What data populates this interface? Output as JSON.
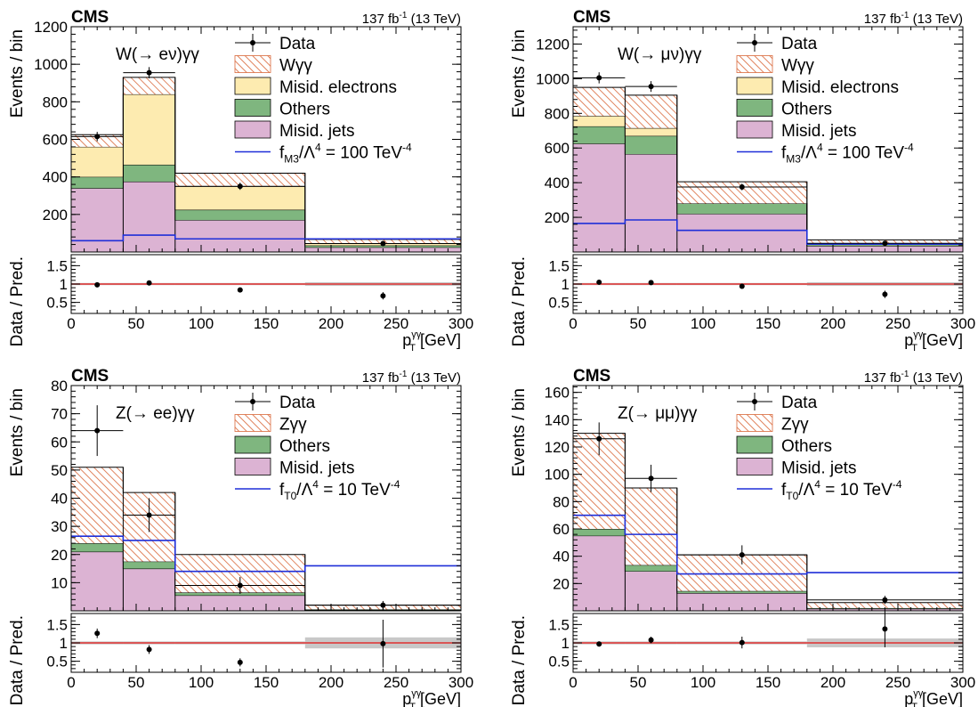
{
  "colors": {
    "signal_fill": "#ffffff",
    "signal_hatch": "#d9683a",
    "misid_electrons": "#fdebb0",
    "others": "#7fb67f",
    "misid_jets": "#dcb3d3",
    "eft_line": "#1f2fd8",
    "ratio_line": "#e03030",
    "ratio_band": "#c8c8c8"
  },
  "chart_data": [
    {
      "type": "bar",
      "experiment": "CMS",
      "lumi": "137 fb",
      "lumi_sup": "-1",
      "energy": " (13 TeV)",
      "process_label": "W(→ eν)γγ",
      "ylabel": "Events / bin",
      "ratio_ylabel": "Data / Pred.",
      "xlabel_main": "p",
      "xlabel_sup": "γγ",
      "xlabel_sub": "T",
      "xlabel_unit": " [GeV]",
      "bin_edges": [
        0,
        40,
        80,
        180,
        300
      ],
      "xlim": [
        0,
        300
      ],
      "ylim": [
        0,
        1200
      ],
      "yticks": [
        200,
        400,
        600,
        800,
        1000,
        1200
      ],
      "xticks": [
        0,
        50,
        100,
        150,
        200,
        250,
        300
      ],
      "ratio_ylim": [
        0.2,
        1.8
      ],
      "ratio_yticks": [
        0.5,
        1,
        1.5
      ],
      "legend": [
        {
          "kind": "data",
          "label": "Data"
        },
        {
          "kind": "signal",
          "label": "Wγγ"
        },
        {
          "kind": "misid_electrons",
          "label": "Misid. electrons"
        },
        {
          "kind": "others",
          "label": "Others"
        },
        {
          "kind": "misid_jets",
          "label": "Misid. jets"
        },
        {
          "kind": "eft",
          "label": "f",
          "sub": "M3",
          "rest": "/Λ",
          "sup1": "4",
          "rest2": " = 100 TeV",
          "sup2": "-4"
        }
      ],
      "stack": [
        {
          "kind": "misid_jets",
          "name": "Misid. jets",
          "values": [
            340,
            375,
            170,
            25
          ]
        },
        {
          "kind": "others",
          "name": "Others",
          "values": [
            60,
            90,
            55,
            10
          ]
        },
        {
          "kind": "misid_electrons",
          "name": "Misid. electrons",
          "values": [
            160,
            375,
            125,
            12
          ]
        },
        {
          "kind": "signal",
          "name": "Wγγ",
          "values": [
            65,
            90,
            70,
            20
          ]
        }
      ],
      "eft_line": [
        60,
        90,
        70,
        70
      ],
      "data": {
        "x": [
          20,
          60,
          130,
          240
        ],
        "y": [
          615,
          955,
          350,
          45
        ],
        "yerr": [
          25,
          30,
          19,
          7
        ],
        "xerr": [
          20,
          20,
          50,
          60
        ]
      },
      "ratio": {
        "y": [
          0.98,
          1.03,
          0.84,
          0.68
        ],
        "yerr": [
          0.04,
          0.04,
          0.05,
          0.1
        ]
      },
      "ratio_band": [
        0.03,
        0.03,
        0.03,
        0.05
      ]
    },
    {
      "type": "bar",
      "experiment": "CMS",
      "lumi": "137 fb",
      "lumi_sup": "-1",
      "energy": " (13 TeV)",
      "process_label": "W(→ μν)γγ",
      "ylabel": "Events / bin",
      "ratio_ylabel": "Data / Pred.",
      "xlabel_main": "p",
      "xlabel_sup": "γγ",
      "xlabel_sub": "T",
      "xlabel_unit": " [GeV]",
      "bin_edges": [
        0,
        40,
        80,
        180,
        300
      ],
      "xlim": [
        0,
        300
      ],
      "ylim": [
        0,
        1300
      ],
      "yticks": [
        200,
        400,
        600,
        800,
        1000,
        1200
      ],
      "xticks": [
        0,
        50,
        100,
        150,
        200,
        250,
        300
      ],
      "ratio_ylim": [
        0.2,
        1.8
      ],
      "ratio_yticks": [
        0.5,
        1,
        1.5
      ],
      "legend": [
        {
          "kind": "data",
          "label": "Data"
        },
        {
          "kind": "signal",
          "label": "Wγγ"
        },
        {
          "kind": "misid_electrons",
          "label": "Misid. electrons"
        },
        {
          "kind": "others",
          "label": "Others"
        },
        {
          "kind": "misid_jets",
          "label": "Misid. jets"
        },
        {
          "kind": "eft",
          "label": "f",
          "sub": "M3",
          "rest": "/Λ",
          "sup1": "4",
          "rest2": " = 100 TeV",
          "sup2": "-4"
        }
      ],
      "stack": [
        {
          "kind": "misid_jets",
          "name": "Misid. jets",
          "values": [
            625,
            565,
            220,
            35
          ]
        },
        {
          "kind": "others",
          "name": "Others",
          "values": [
            100,
            105,
            60,
            10
          ]
        },
        {
          "kind": "misid_electrons",
          "name": "Misid. electrons",
          "values": [
            60,
            45,
            0,
            0
          ]
        },
        {
          "kind": "signal",
          "name": "Wγγ",
          "values": [
            165,
            190,
            125,
            25
          ]
        }
      ],
      "eft_line": [
        165,
        185,
        125,
        45
      ],
      "data": {
        "x": [
          20,
          60,
          130,
          240
        ],
        "y": [
          1005,
          955,
          375,
          50
        ],
        "yerr": [
          32,
          31,
          19,
          7
        ],
        "xerr": [
          20,
          20,
          50,
          60
        ]
      },
      "ratio": {
        "y": [
          1.05,
          1.04,
          0.94,
          0.72
        ],
        "yerr": [
          0.04,
          0.04,
          0.05,
          0.1
        ]
      },
      "ratio_band": [
        0.03,
        0.03,
        0.03,
        0.05
      ]
    },
    {
      "type": "bar",
      "experiment": "CMS",
      "lumi": "137 fb",
      "lumi_sup": "-1",
      "energy": " (13 TeV)",
      "process_label": "Z(→ ee)γγ",
      "ylabel": "Events / bin",
      "ratio_ylabel": "Data / Pred.",
      "xlabel_main": "p",
      "xlabel_sup": "γγ",
      "xlabel_sub": "T",
      "xlabel_unit": " [GeV]",
      "bin_edges": [
        0,
        40,
        80,
        180,
        300
      ],
      "xlim": [
        0,
        300
      ],
      "ylim": [
        0,
        80
      ],
      "yticks": [
        10,
        20,
        30,
        40,
        50,
        60,
        70,
        80
      ],
      "xticks": [
        0,
        50,
        100,
        150,
        200,
        250,
        300
      ],
      "ratio_ylim": [
        0.2,
        1.8
      ],
      "ratio_yticks": [
        0.5,
        1,
        1.5
      ],
      "legend": [
        {
          "kind": "data",
          "label": "Data"
        },
        {
          "kind": "signal",
          "label": "Zγγ"
        },
        {
          "kind": "others",
          "label": "Others"
        },
        {
          "kind": "misid_jets",
          "label": "Misid. jets"
        },
        {
          "kind": "eft",
          "label": "f",
          "sub": "T0",
          "rest": "/Λ",
          "sup1": "4",
          "rest2": " = 10 TeV",
          "sup2": "-4"
        }
      ],
      "stack": [
        {
          "kind": "misid_jets",
          "name": "Misid. jets",
          "values": [
            21,
            15,
            5.5,
            0.3
          ]
        },
        {
          "kind": "others",
          "name": "Others",
          "values": [
            3,
            2.5,
            1,
            0.2
          ]
        },
        {
          "kind": "signal",
          "name": "Zγγ",
          "values": [
            27,
            24.5,
            13.5,
            1.5
          ]
        }
      ],
      "eft_line": [
        26.5,
        25,
        14,
        16
      ],
      "data": {
        "x": [
          20,
          60,
          130,
          240
        ],
        "y": [
          64,
          34,
          9,
          2
        ],
        "yerr": [
          9,
          6,
          3,
          1.5
        ],
        "xerr": [
          20,
          20,
          50,
          60
        ]
      },
      "ratio": {
        "y": [
          1.26,
          0.82,
          0.47,
          0.98
        ],
        "yerr": [
          0.13,
          0.12,
          0.11,
          0.65
        ]
      },
      "ratio_band": [
        0.04,
        0.04,
        0.04,
        0.15
      ]
    },
    {
      "type": "bar",
      "experiment": "CMS",
      "lumi": "137 fb",
      "lumi_sup": "-1",
      "energy": " (13 TeV)",
      "process_label": "Z(→ μμ)γγ",
      "ylabel": "Events / bin",
      "ratio_ylabel": "Data / Pred.",
      "xlabel_main": "p",
      "xlabel_sup": "γγ",
      "xlabel_sub": "T",
      "xlabel_unit": " [GeV]",
      "bin_edges": [
        0,
        40,
        80,
        180,
        300
      ],
      "xlim": [
        0,
        300
      ],
      "ylim": [
        0,
        165
      ],
      "yticks": [
        20,
        40,
        60,
        80,
        100,
        120,
        140,
        160
      ],
      "xticks": [
        0,
        50,
        100,
        150,
        200,
        250,
        300
      ],
      "ratio_ylim": [
        0.2,
        1.8
      ],
      "ratio_yticks": [
        0.5,
        1,
        1.5
      ],
      "legend": [
        {
          "kind": "data",
          "label": "Data"
        },
        {
          "kind": "signal",
          "label": "Zγγ"
        },
        {
          "kind": "others",
          "label": "Others"
        },
        {
          "kind": "misid_jets",
          "label": "Misid. jets"
        },
        {
          "kind": "eft",
          "label": "f",
          "sub": "T0",
          "rest": "/Λ",
          "sup1": "4",
          "rest2": " = 10 TeV",
          "sup2": "-4"
        }
      ],
      "stack": [
        {
          "kind": "misid_jets",
          "name": "Misid. jets",
          "values": [
            55,
            29,
            13,
            1.5
          ]
        },
        {
          "kind": "others",
          "name": "Others",
          "values": [
            5,
            4.5,
            1.5,
            0.5
          ]
        },
        {
          "kind": "signal",
          "name": "Zγγ",
          "values": [
            70,
            56.5,
            26.5,
            4
          ]
        }
      ],
      "eft_line": [
        70,
        56,
        27,
        28
      ],
      "data": {
        "x": [
          20,
          60,
          130,
          240
        ],
        "y": [
          126,
          97,
          41,
          8
        ],
        "yerr": [
          12,
          10,
          7,
          3
        ],
        "xerr": [
          20,
          20,
          50,
          60
        ]
      },
      "ratio": {
        "y": [
          0.97,
          1.08,
          1.01,
          1.38
        ],
        "yerr": [
          0.07,
          0.09,
          0.16,
          0.5
        ]
      },
      "ratio_band": [
        0.04,
        0.04,
        0.04,
        0.12
      ]
    }
  ]
}
